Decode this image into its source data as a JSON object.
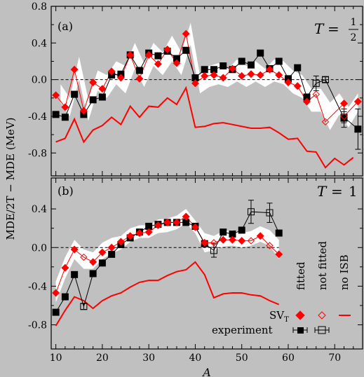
{
  "chart_data": [
    {
      "panel": "(a)",
      "type": "line",
      "title_math": {
        "T": "T",
        "eq": "=",
        "num": "1",
        "den": "2"
      },
      "xlim": [
        9,
        76
      ],
      "ylim": [
        -1.05,
        0.8
      ],
      "yticks": [
        -0.8,
        -0.4,
        0.0,
        0.4,
        0.8
      ],
      "ytick_labels": [
        "-0.8",
        "-0.4",
        "0.0",
        "0.4",
        "0.8"
      ],
      "xticks": [
        10,
        20,
        30,
        40,
        50,
        60,
        70
      ],
      "band": {
        "x": [
          11,
          13,
          15,
          17,
          19,
          21,
          23,
          25,
          27,
          29,
          31,
          33,
          35,
          37,
          39,
          41,
          43,
          45,
          47,
          49,
          51,
          53,
          55,
          57,
          59,
          61,
          63,
          65,
          67,
          69,
          71,
          73,
          75
        ],
        "upper": [
          -0.05,
          -0.2,
          0.25,
          -0.22,
          0.1,
          0.05,
          0.2,
          0.15,
          0.4,
          0.18,
          0.4,
          0.3,
          0.48,
          0.3,
          0.62,
          0.05,
          0.15,
          0.18,
          0.12,
          0.22,
          0.15,
          0.2,
          0.12,
          0.22,
          0.2,
          0.1,
          0.05,
          -0.1,
          -0.1,
          -0.25,
          -0.15,
          -0.3,
          -0.15
        ],
        "lower": [
          -0.25,
          -0.4,
          0.0,
          -0.45,
          -0.12,
          -0.2,
          -0.05,
          -0.15,
          0.12,
          -0.08,
          0.15,
          0.05,
          0.2,
          0.05,
          0.38,
          -0.15,
          -0.08,
          -0.05,
          -0.08,
          -0.02,
          -0.08,
          -0.02,
          -0.08,
          -0.02,
          -0.05,
          -0.15,
          -0.2,
          -0.35,
          -0.35,
          -0.55,
          -0.38,
          -0.52,
          -0.35
        ]
      },
      "series": [
        {
          "role": "experiment",
          "style": "filled-square",
          "points": [
            {
              "x": 10,
              "y": -0.38
            },
            {
              "x": 12,
              "y": -0.41
            },
            {
              "x": 14,
              "y": -0.16
            },
            {
              "x": 16,
              "y": -0.38
            },
            {
              "x": 18,
              "y": -0.22
            },
            {
              "x": 20,
              "y": -0.19
            },
            {
              "x": 22,
              "y": 0.05
            },
            {
              "x": 24,
              "y": 0.06
            },
            {
              "x": 26,
              "y": 0.27
            },
            {
              "x": 28,
              "y": 0.1
            },
            {
              "x": 30,
              "y": 0.29
            },
            {
              "x": 32,
              "y": 0.26
            },
            {
              "x": 34,
              "y": 0.31
            },
            {
              "x": 36,
              "y": 0.23
            },
            {
              "x": 38,
              "y": 0.32
            },
            {
              "x": 40,
              "y": 0.02
            },
            {
              "x": 42,
              "y": 0.11
            },
            {
              "x": 44,
              "y": 0.11
            },
            {
              "x": 46,
              "y": 0.15
            },
            {
              "x": 48,
              "y": 0.11
            },
            {
              "x": 50,
              "y": 0.2
            },
            {
              "x": 52,
              "y": 0.16
            },
            {
              "x": 54,
              "y": 0.29
            },
            {
              "x": 56,
              "y": 0.12
            },
            {
              "x": 58,
              "y": 0.2
            },
            {
              "x": 60,
              "y": 0.01
            },
            {
              "x": 62,
              "y": 0.13
            },
            {
              "x": 64,
              "y": -0.19
            },
            {
              "x": 72,
              "y": -0.42
            },
            {
              "x": 75,
              "y": -0.54
            }
          ],
          "errorbars": [
            {
              "x": 72,
              "err": 0.1
            },
            {
              "x": 75,
              "err": 0.22
            }
          ]
        },
        {
          "role": "experiment",
          "style": "open-square",
          "points": [
            {
              "x": 66,
              "y": -0.04
            },
            {
              "x": 68,
              "y": 0.0
            },
            {
              "x": 72,
              "y": -0.41
            }
          ],
          "errorbars": [
            {
              "x": 66,
              "err": 0.08
            },
            {
              "x": 68,
              "err": 0.03
            },
            {
              "x": 72,
              "err": 0.06
            }
          ]
        },
        {
          "role": "SV_T",
          "style": "filled-diamond",
          "points": [
            {
              "x": 10,
              "y": -0.17
            },
            {
              "x": 12,
              "y": -0.3
            },
            {
              "x": 14,
              "y": 0.11
            },
            {
              "x": 16,
              "y": -0.34
            },
            {
              "x": 18,
              "y": -0.03
            },
            {
              "x": 20,
              "y": -0.1
            },
            {
              "x": 22,
              "y": 0.09
            },
            {
              "x": 24,
              "y": 0.02
            },
            {
              "x": 26,
              "y": 0.27
            },
            {
              "x": 28,
              "y": 0.01
            },
            {
              "x": 30,
              "y": 0.27
            },
            {
              "x": 32,
              "y": 0.17
            },
            {
              "x": 34,
              "y": 0.33
            },
            {
              "x": 36,
              "y": 0.18
            },
            {
              "x": 38,
              "y": 0.5
            },
            {
              "x": 40,
              "y": -0.04
            },
            {
              "x": 42,
              "y": 0.04
            },
            {
              "x": 44,
              "y": 0.05
            },
            {
              "x": 46,
              "y": 0.02
            },
            {
              "x": 48,
              "y": 0.12
            },
            {
              "x": 50,
              "y": 0.04
            },
            {
              "x": 52,
              "y": 0.06
            },
            {
              "x": 54,
              "y": 0.05
            },
            {
              "x": 56,
              "y": 0.11
            },
            {
              "x": 58,
              "y": 0.05
            },
            {
              "x": 60,
              "y": -0.03
            },
            {
              "x": 62,
              "y": -0.07
            },
            {
              "x": 64,
              "y": -0.24
            },
            {
              "x": 72,
              "y": -0.26
            },
            {
              "x": 75,
              "y": -0.24
            }
          ]
        },
        {
          "role": "SV_T",
          "style": "open-diamond",
          "points": [
            {
              "x": 66,
              "y": -0.16
            },
            {
              "x": 68,
              "y": -0.46
            },
            {
              "x": 72,
              "y": -0.4
            }
          ]
        },
        {
          "role": "no-ISB",
          "style": "line",
          "points": [
            {
              "x": 10,
              "y": -0.68
            },
            {
              "x": 12,
              "y": -0.64
            },
            {
              "x": 14,
              "y": -0.43
            },
            {
              "x": 16,
              "y": -0.68
            },
            {
              "x": 18,
              "y": -0.55
            },
            {
              "x": 20,
              "y": -0.5
            },
            {
              "x": 22,
              "y": -0.41
            },
            {
              "x": 24,
              "y": -0.49
            },
            {
              "x": 26,
              "y": -0.29
            },
            {
              "x": 28,
              "y": -0.41
            },
            {
              "x": 30,
              "y": -0.29
            },
            {
              "x": 32,
              "y": -0.3
            },
            {
              "x": 34,
              "y": -0.2
            },
            {
              "x": 36,
              "y": -0.27
            },
            {
              "x": 38,
              "y": -0.09
            },
            {
              "x": 40,
              "y": -0.52
            },
            {
              "x": 42,
              "y": -0.51
            },
            {
              "x": 44,
              "y": -0.48
            },
            {
              "x": 46,
              "y": -0.47
            },
            {
              "x": 48,
              "y": -0.49
            },
            {
              "x": 50,
              "y": -0.51
            },
            {
              "x": 52,
              "y": -0.53
            },
            {
              "x": 54,
              "y": -0.53
            },
            {
              "x": 56,
              "y": -0.52
            },
            {
              "x": 58,
              "y": -0.58
            },
            {
              "x": 60,
              "y": -0.65
            },
            {
              "x": 62,
              "y": -0.64
            },
            {
              "x": 64,
              "y": -0.78
            },
            {
              "x": 66,
              "y": -0.79
            },
            {
              "x": 68,
              "y": -0.96
            },
            {
              "x": 70,
              "y": -0.86
            },
            {
              "x": 72,
              "y": -0.93
            },
            {
              "x": 74,
              "y": -0.85
            }
          ]
        }
      ]
    },
    {
      "panel": "(b)",
      "type": "line",
      "title_math": {
        "T": "T",
        "eq": "=",
        "val": "1"
      },
      "xlim": [
        9,
        76
      ],
      "ylim": [
        -1.05,
        0.72
      ],
      "yticks": [
        -0.8,
        -0.4,
        0.0,
        0.4
      ],
      "ytick_labels": [
        "-0.8",
        "-0.4",
        "0.0",
        "0.4"
      ],
      "xticks": [
        10,
        20,
        30,
        40,
        50,
        60,
        70
      ],
      "xtick_labels": [
        "10",
        "20",
        "30",
        "40",
        "50",
        "60",
        "70"
      ],
      "band": {
        "x": [
          10,
          12,
          14,
          16,
          18,
          20,
          22,
          24,
          26,
          28,
          30,
          32,
          34,
          36,
          38,
          40,
          42,
          44,
          46,
          48,
          50,
          52,
          54,
          56,
          58
        ],
        "upper": [
          -0.35,
          -0.1,
          0.08,
          -0.02,
          -0.05,
          0.05,
          0.1,
          0.12,
          0.2,
          0.23,
          0.23,
          0.29,
          0.3,
          0.33,
          0.4,
          0.28,
          0.15,
          0.12,
          0.17,
          0.18,
          0.15,
          0.17,
          0.22,
          0.18,
          0.08
        ],
        "lower": [
          -0.57,
          -0.32,
          -0.12,
          -0.22,
          -0.22,
          -0.12,
          -0.06,
          -0.02,
          0.06,
          0.1,
          0.1,
          0.15,
          0.16,
          0.19,
          0.25,
          0.15,
          -0.05,
          -0.03,
          0.01,
          0.02,
          0.0,
          0.02,
          0.06,
          0.02,
          -0.12
        ]
      },
      "series": [
        {
          "role": "experiment",
          "style": "filled-square",
          "points": [
            {
              "x": 10,
              "y": -0.67
            },
            {
              "x": 12,
              "y": -0.51
            },
            {
              "x": 14,
              "y": -0.28
            },
            {
              "x": 18,
              "y": -0.27
            },
            {
              "x": 20,
              "y": -0.16
            },
            {
              "x": 22,
              "y": -0.07
            },
            {
              "x": 24,
              "y": 0.03
            },
            {
              "x": 26,
              "y": 0.1
            },
            {
              "x": 28,
              "y": 0.16
            },
            {
              "x": 30,
              "y": 0.22
            },
            {
              "x": 32,
              "y": 0.24
            },
            {
              "x": 34,
              "y": 0.26
            },
            {
              "x": 36,
              "y": 0.26
            },
            {
              "x": 38,
              "y": 0.26
            },
            {
              "x": 40,
              "y": 0.22
            },
            {
              "x": 42,
              "y": 0.04
            },
            {
              "x": 46,
              "y": 0.16
            },
            {
              "x": 48,
              "y": 0.14
            },
            {
              "x": 50,
              "y": 0.18
            },
            {
              "x": 58,
              "y": 0.15
            }
          ]
        },
        {
          "role": "experiment",
          "style": "open-square",
          "points": [
            {
              "x": 16,
              "y": -0.61
            },
            {
              "x": 44,
              "y": -0.03
            },
            {
              "x": 52,
              "y": 0.37
            },
            {
              "x": 56,
              "y": 0.36
            }
          ],
          "errorbars": [
            {
              "x": 16,
              "err": 0.03
            },
            {
              "x": 44,
              "err": 0.07
            },
            {
              "x": 52,
              "err": 0.12
            },
            {
              "x": 56,
              "err": 0.1
            }
          ]
        },
        {
          "role": "SV_T",
          "style": "filled-diamond",
          "points": [
            {
              "x": 10,
              "y": -0.47
            },
            {
              "x": 12,
              "y": -0.21
            },
            {
              "x": 14,
              "y": -0.02
            },
            {
              "x": 18,
              "y": -0.15
            },
            {
              "x": 20,
              "y": -0.05
            },
            {
              "x": 22,
              "y": 0.0
            },
            {
              "x": 24,
              "y": 0.06
            },
            {
              "x": 26,
              "y": 0.12
            },
            {
              "x": 28,
              "y": 0.15
            },
            {
              "x": 30,
              "y": 0.16
            },
            {
              "x": 32,
              "y": 0.23
            },
            {
              "x": 34,
              "y": 0.26
            },
            {
              "x": 36,
              "y": 0.26
            },
            {
              "x": 38,
              "y": 0.32
            },
            {
              "x": 40,
              "y": 0.21
            },
            {
              "x": 42,
              "y": 0.05
            },
            {
              "x": 46,
              "y": 0.08
            },
            {
              "x": 48,
              "y": 0.08
            },
            {
              "x": 50,
              "y": 0.07
            },
            {
              "x": 54,
              "y": 0.12
            },
            {
              "x": 58,
              "y": -0.07
            }
          ]
        },
        {
          "role": "SV_T",
          "style": "open-diamond",
          "points": [
            {
              "x": 16,
              "y": -0.1
            },
            {
              "x": 44,
              "y": 0.05
            },
            {
              "x": 52,
              "y": 0.07
            },
            {
              "x": 56,
              "y": 0.02
            }
          ]
        },
        {
          "role": "no-ISB",
          "style": "line",
          "points": [
            {
              "x": 10,
              "y": -0.81
            },
            {
              "x": 12,
              "y": -0.65
            },
            {
              "x": 14,
              "y": -0.51
            },
            {
              "x": 16,
              "y": -0.55
            },
            {
              "x": 18,
              "y": -0.63
            },
            {
              "x": 20,
              "y": -0.55
            },
            {
              "x": 22,
              "y": -0.5
            },
            {
              "x": 24,
              "y": -0.47
            },
            {
              "x": 26,
              "y": -0.41
            },
            {
              "x": 28,
              "y": -0.36
            },
            {
              "x": 30,
              "y": -0.34
            },
            {
              "x": 32,
              "y": -0.34
            },
            {
              "x": 34,
              "y": -0.29
            },
            {
              "x": 36,
              "y": -0.25
            },
            {
              "x": 38,
              "y": -0.23
            },
            {
              "x": 40,
              "y": -0.15
            },
            {
              "x": 42,
              "y": -0.28
            },
            {
              "x": 44,
              "y": -0.52
            },
            {
              "x": 46,
              "y": -0.48
            },
            {
              "x": 48,
              "y": -0.47
            },
            {
              "x": 50,
              "y": -0.47
            },
            {
              "x": 52,
              "y": -0.49
            },
            {
              "x": 54,
              "y": -0.5
            },
            {
              "x": 56,
              "y": -0.55
            },
            {
              "x": 58,
              "y": -0.59
            }
          ]
        }
      ]
    }
  ],
  "axes": {
    "ylabel": "MDE/2T − MDE (MeV)",
    "xlabel": "A"
  },
  "legend": {
    "headers": [
      "fitted",
      "not fitted",
      "no ISB"
    ],
    "row_svt": {
      "name": "SV",
      "sub": "T"
    },
    "row_exp": "experiment"
  },
  "colors": {
    "background": "#c0c0c0",
    "band": "#ffffff",
    "theory": "#ff0000",
    "experiment": "#000000"
  }
}
